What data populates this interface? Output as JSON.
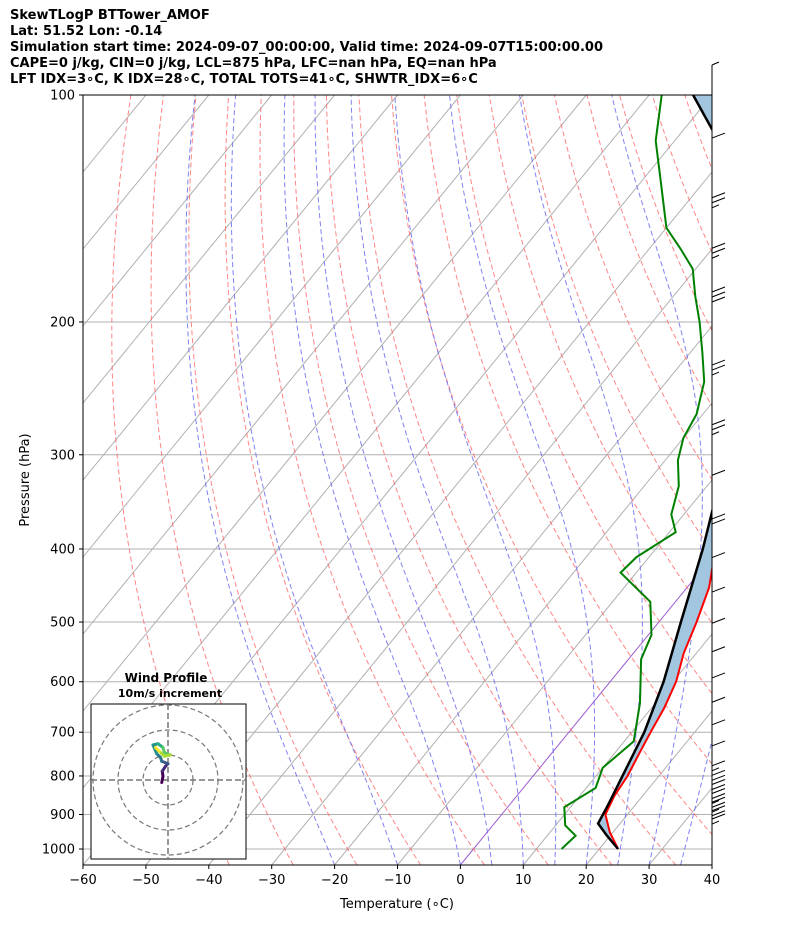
{
  "header": {
    "line1": "SkewTLogP BTTower_AMOF",
    "line2": "Lat: 51.52   Lon: -0.14",
    "line3": "Simulation start time: 2024-09-07_00:00:00, Valid time: 2024-09-07T15:00:00.00",
    "line4": "CAPE=0 j/kg, CIN=0 j/kg, LCL=875 hPa, LFC=nan hPa, EQ=nan hPa",
    "line5": "LFT IDX=3∘C, K IDX=28∘C, TOTAL TOTS=41∘C, SHWTR_IDX=6∘C"
  },
  "chart_data": [
    {
      "type": "line",
      "subtype": "skew-t log-p",
      "xlabel": "Temperature (∘C)",
      "ylabel": "Pressure (hPa)",
      "xlim": [
        -60,
        40
      ],
      "ylim": [
        1050,
        100
      ],
      "yscale": "log",
      "x_ticks": [
        "−60",
        "−50",
        "−40",
        "−30",
        "−20",
        "−10",
        "0",
        "10",
        "20",
        "30",
        "40"
      ],
      "y_ticks": [
        100,
        200,
        300,
        400,
        500,
        600,
        700,
        800,
        900,
        1000
      ],
      "grid": true,
      "colors": {
        "temperature": "#ff0000",
        "dewpoint": "#008000",
        "parcel": "#000000",
        "cin_cape_shade": "#a3c6e0",
        "dry_adiabats": "#ff6666",
        "moist_adiabats": "#6b6bf0",
        "mixing_ratio": "#aaaaaa",
        "isotherm_0": "#9b59d0"
      },
      "series": [
        {
          "key": "temperature",
          "points": [
            [
              23,
              1000
            ],
            [
              19.5,
              950
            ],
            [
              16.5,
              900
            ],
            [
              15.5,
              850
            ],
            [
              15.0,
              800
            ],
            [
              14.0,
              750
            ],
            [
              13.0,
              700
            ],
            [
              12.0,
              650
            ],
            [
              10.5,
              600
            ],
            [
              8.0,
              550
            ],
            [
              6.0,
              500
            ],
            [
              3.5,
              450
            ],
            [
              -0.5,
              400
            ],
            [
              -5.0,
              350
            ],
            [
              -10.5,
              300
            ],
            [
              -16.0,
              270
            ],
            [
              -19.0,
              250
            ],
            [
              -22.5,
              230
            ],
            [
              -25.5,
              215
            ],
            [
              -30.0,
              195
            ],
            [
              -34.0,
              180
            ],
            [
              -38.0,
              165
            ],
            [
              -42.0,
              150
            ],
            [
              -46.0,
              135
            ],
            [
              -49.0,
              125
            ],
            [
              -54.0,
              110
            ],
            [
              -57.5,
              100
            ]
          ]
        },
        {
          "key": "dewpoint",
          "points": [
            [
              14.0,
              1000
            ],
            [
              14.5,
              960
            ],
            [
              11.5,
              930
            ],
            [
              9.0,
              880
            ],
            [
              11.5,
              830
            ],
            [
              10.0,
              780
            ],
            [
              11.5,
              720
            ],
            [
              7.5,
              640
            ],
            [
              2.0,
              560
            ],
            [
              0.5,
              520
            ],
            [
              -4.0,
              470
            ],
            [
              -12.5,
              430
            ],
            [
              -12.0,
              410
            ],
            [
              -9.0,
              380
            ],
            [
              -12.0,
              360
            ],
            [
              -14.5,
              330
            ],
            [
              -18.0,
              305
            ],
            [
              -20.0,
              285
            ],
            [
              -21.0,
              265
            ],
            [
              -24.0,
              240
            ],
            [
              -28.0,
              220
            ],
            [
              -32.5,
              200
            ],
            [
              -36.5,
              185
            ],
            [
              -40.5,
              170
            ],
            [
              -45.0,
              160
            ],
            [
              -50.0,
              150
            ],
            [
              -57.0,
              130
            ],
            [
              -63.0,
              115
            ],
            [
              -68.0,
              100
            ]
          ]
        },
        {
          "key": "parcel",
          "points": [
            [
              23,
              1000
            ],
            [
              19.5,
              960
            ],
            [
              16.5,
              925
            ],
            [
              15.7,
              875
            ],
            [
              12.0,
              700
            ],
            [
              8.5,
              600
            ],
            [
              3.5,
              500
            ],
            [
              -2.5,
              400
            ],
            [
              -11.0,
              300
            ],
            [
              -24.0,
              200
            ],
            [
              -35.0,
              150
            ],
            [
              -50.0,
              120
            ],
            [
              -63.0,
              100
            ]
          ]
        }
      ]
    },
    {
      "type": "hodograph",
      "title": "Wind Profile",
      "subtitle": "10m/s increment",
      "rings": [
        10,
        20,
        30
      ],
      "points_uv": [
        [
          -2.5,
          -1.0
        ],
        [
          -2.0,
          1.5
        ],
        [
          -2.3,
          3.5
        ],
        [
          -1.0,
          5.5
        ],
        [
          0.0,
          6.5
        ],
        [
          -2.5,
          7.5
        ],
        [
          -3.0,
          9.0
        ],
        [
          -4.5,
          10.5
        ],
        [
          -6.0,
          14.0
        ],
        [
          -4.0,
          14.5
        ],
        [
          -2.0,
          13.0
        ],
        [
          -1.5,
          11.0
        ],
        [
          1.0,
          10.0
        ],
        [
          -1.5,
          9.5
        ],
        [
          -3.5,
          11.5
        ],
        [
          -5.0,
          13.0
        ]
      ]
    }
  ],
  "wind_barbs": {
    "pressures": [
      1000,
      975,
      950,
      925,
      900,
      875,
      850,
      800,
      750,
      700,
      650,
      600,
      550,
      500,
      450,
      400,
      350,
      300,
      250,
      200,
      175,
      150,
      125,
      100
    ],
    "speeds_kt": [
      15,
      20,
      25,
      25,
      20,
      20,
      15,
      10,
      10,
      10,
      10,
      10,
      10,
      10,
      10,
      20,
      10,
      25,
      25,
      30,
      25,
      25,
      10,
      5
    ]
  }
}
